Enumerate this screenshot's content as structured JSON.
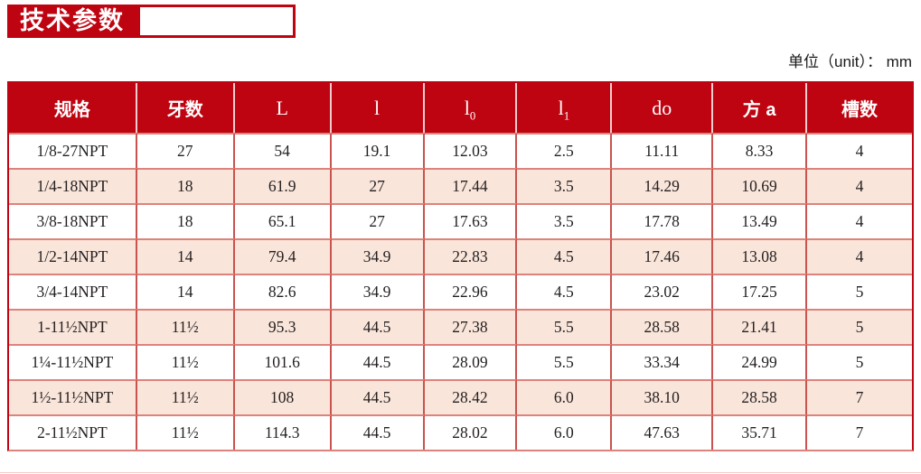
{
  "header": {
    "title": "技术参数",
    "unit_note": "单位（unit）： mm"
  },
  "colors": {
    "accent_red": "#bf0411",
    "row_pink": "#f9e5da",
    "grid_red": "#c9534f",
    "grid_light_red": "#dd837c",
    "text_ink": "#231f20"
  },
  "table": {
    "columns": [
      {
        "key": "spec",
        "label": "规格"
      },
      {
        "key": "teeth",
        "label": "牙数"
      },
      {
        "key": "L",
        "label": "L"
      },
      {
        "key": "l",
        "label": "l"
      },
      {
        "key": "l0",
        "label": "l",
        "sub": "0"
      },
      {
        "key": "l1",
        "label": "l",
        "sub": "1"
      },
      {
        "key": "do",
        "label": "do"
      },
      {
        "key": "fang_a",
        "label": "方 a"
      },
      {
        "key": "slots",
        "label": "槽数"
      }
    ],
    "rows": [
      [
        "1/8-27NPT",
        "27",
        "54",
        "19.1",
        "12.03",
        "2.5",
        "11.11",
        "8.33",
        "4"
      ],
      [
        "1/4-18NPT",
        "18",
        "61.9",
        "27",
        "17.44",
        "3.5",
        "14.29",
        "10.69",
        "4"
      ],
      [
        "3/8-18NPT",
        "18",
        "65.1",
        "27",
        "17.63",
        "3.5",
        "17.78",
        "13.49",
        "4"
      ],
      [
        "1/2-14NPT",
        "14",
        "79.4",
        "34.9",
        "22.83",
        "4.5",
        "17.46",
        "13.08",
        "4"
      ],
      [
        "3/4-14NPT",
        "14",
        "82.6",
        "34.9",
        "22.96",
        "4.5",
        "23.02",
        "17.25",
        "5"
      ],
      [
        "1-11½NPT",
        "11½",
        "95.3",
        "44.5",
        "27.38",
        "5.5",
        "28.58",
        "21.41",
        "5"
      ],
      [
        "1¼-11½NPT",
        "11½",
        "101.6",
        "44.5",
        "28.09",
        "5.5",
        "33.34",
        "24.99",
        "5"
      ],
      [
        "1½-11½NPT",
        "11½",
        "108",
        "44.5",
        "28.42",
        "6.0",
        "38.10",
        "28.58",
        "7"
      ],
      [
        "2-11½NPT",
        "11½",
        "114.3",
        "44.5",
        "28.02",
        "6.0",
        "47.63",
        "35.71",
        "7"
      ]
    ]
  }
}
